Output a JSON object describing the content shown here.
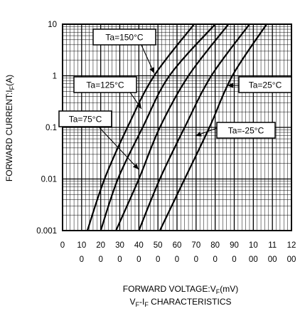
{
  "chart_data": {
    "type": "line",
    "title": "VF-IF CHARACTERISTICS",
    "xlabel": "FORWARD VOLTAGE:VF(mV)",
    "ylabel": "FORWARD CURRENT:IF(A)",
    "xscale": "linear",
    "yscale": "log",
    "xlim": [
      0,
      1200
    ],
    "ylim": [
      0.001,
      10
    ],
    "grid": true,
    "x_ticks": [
      {
        "l1": "0",
        "l2": ""
      },
      {
        "l1": "10",
        "l2": "0"
      },
      {
        "l1": "20",
        "l2": "0"
      },
      {
        "l1": "30",
        "l2": "0"
      },
      {
        "l1": "40",
        "l2": "0"
      },
      {
        "l1": "50",
        "l2": "0"
      },
      {
        "l1": "60",
        "l2": "0"
      },
      {
        "l1": "70",
        "l2": "0"
      },
      {
        "l1": "80",
        "l2": "0"
      },
      {
        "l1": "90",
        "l2": "0"
      },
      {
        "l1": "10",
        "l2": "00"
      },
      {
        "l1": "11",
        "l2": "00"
      },
      {
        "l1": "12",
        "l2": "00"
      }
    ],
    "y_ticks": [
      "10",
      "1",
      "0.1",
      "0.01",
      "0.001"
    ],
    "series": [
      {
        "name": "Ta=150°C",
        "points": [
          [
            130,
            0.001
          ],
          [
            220,
            0.01
          ],
          [
            340,
            0.1
          ],
          [
            480,
            1
          ],
          [
            690,
            10
          ]
        ]
      },
      {
        "name": "Ta=125°C",
        "points": [
          [
            200,
            0.001
          ],
          [
            290,
            0.01
          ],
          [
            420,
            0.1
          ],
          [
            560,
            1
          ],
          [
            800,
            10
          ]
        ]
      },
      {
        "name": "Ta=75°C",
        "points": [
          [
            280,
            0.001
          ],
          [
            400,
            0.01
          ],
          [
            510,
            0.1
          ],
          [
            660,
            1
          ],
          [
            870,
            10
          ]
        ]
      },
      {
        "name": "Ta=25°C",
        "points": [
          [
            400,
            0.001
          ],
          [
            510,
            0.01
          ],
          [
            640,
            0.1
          ],
          [
            780,
            1
          ],
          [
            980,
            10
          ]
        ]
      },
      {
        "name": "Ta=-25°C",
        "points": [
          [
            510,
            0.001
          ],
          [
            640,
            0.01
          ],
          [
            770,
            0.1
          ],
          [
            890,
            1
          ],
          [
            1070,
            10
          ]
        ]
      }
    ]
  }
}
